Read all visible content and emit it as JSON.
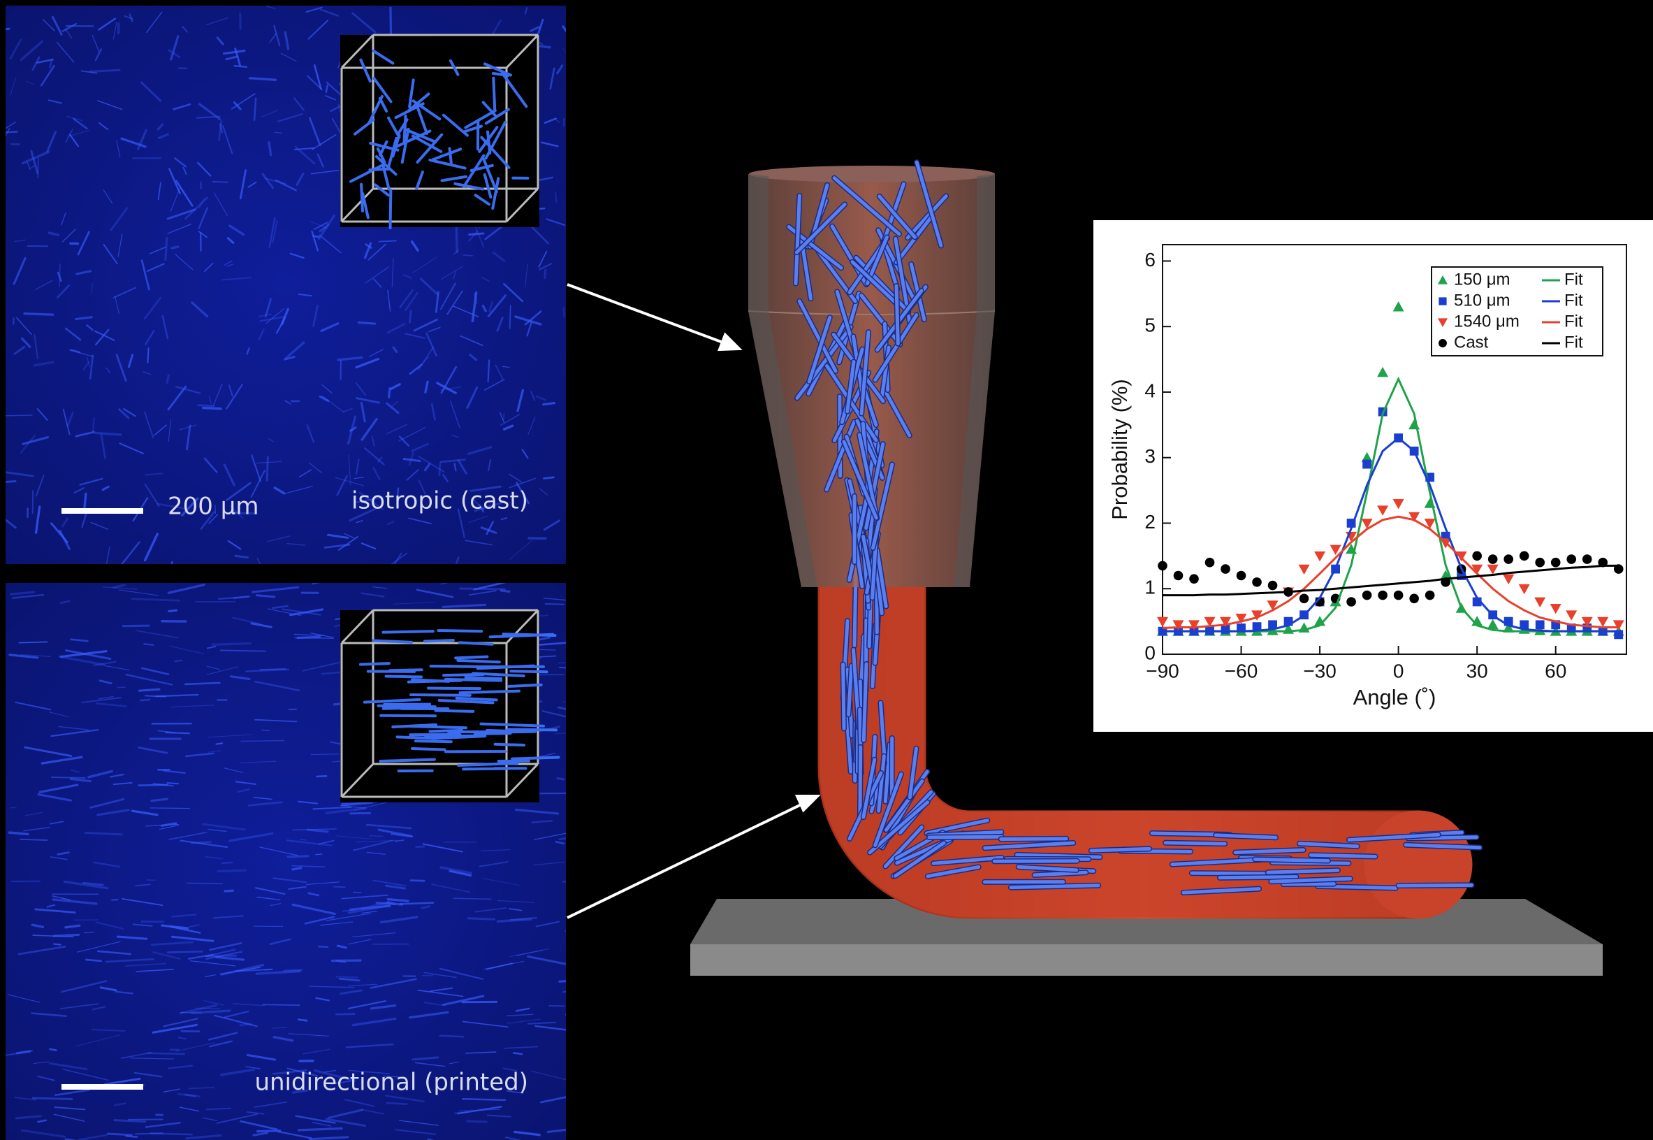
{
  "panels": [
    {
      "label": "isotropic (cast)",
      "scale_bar": "200 μm"
    },
    {
      "label": "unidirectional (printed)"
    }
  ],
  "chart_data": {
    "type": "scatter",
    "xlabel": "Angle (˚)",
    "ylabel": "Probability (%)",
    "x": [
      -90,
      -84,
      -78,
      -72,
      -66,
      -60,
      -54,
      -48,
      -42,
      -36,
      -30,
      -24,
      -18,
      -12,
      -6,
      0,
      6,
      12,
      18,
      24,
      30,
      36,
      42,
      48,
      54,
      60,
      66,
      72,
      78,
      84
    ],
    "xlim": [
      -90,
      87
    ],
    "ylim": [
      0,
      6.25
    ],
    "xticks": [
      {
        "value": -90,
        "label": "−90"
      },
      {
        "value": -60,
        "label": "−60"
      },
      {
        "value": -30,
        "label": "−30"
      },
      0,
      30,
      60
    ],
    "yticks": [
      0,
      1,
      2,
      3,
      4,
      5,
      6
    ],
    "grid": false,
    "legend": "upper right",
    "series": [
      {
        "name": "150 μm",
        "color": "#1fa34a",
        "marker": "triangle-up",
        "values": [
          0.35,
          0.35,
          0.35,
          0.35,
          0.35,
          0.35,
          0.35,
          0.36,
          0.38,
          0.4,
          0.5,
          0.8,
          1.6,
          3.0,
          4.3,
          5.3,
          3.5,
          2.3,
          1.2,
          0.7,
          0.5,
          0.45,
          0.4,
          0.38,
          0.36,
          0.35,
          0.35,
          0.35,
          0.35,
          0.35
        ]
      },
      {
        "name": "510 μm",
        "color": "#1a3fd0",
        "marker": "square",
        "values": [
          0.35,
          0.35,
          0.35,
          0.36,
          0.38,
          0.4,
          0.42,
          0.45,
          0.5,
          0.6,
          0.8,
          1.3,
          2.0,
          2.9,
          3.7,
          3.3,
          3.1,
          2.7,
          1.8,
          1.2,
          0.8,
          0.6,
          0.5,
          0.45,
          0.45,
          0.45,
          0.4,
          0.4,
          0.35,
          0.3
        ]
      },
      {
        "name": "1540 μm",
        "color": "#e8402a",
        "marker": "triangle-down",
        "values": [
          0.5,
          0.45,
          0.45,
          0.5,
          0.5,
          0.55,
          0.6,
          0.75,
          0.95,
          1.3,
          1.5,
          1.6,
          1.8,
          2.0,
          2.2,
          2.3,
          2.1,
          2.0,
          1.7,
          1.5,
          1.3,
          1.3,
          1.15,
          1.0,
          0.8,
          0.7,
          0.6,
          0.5,
          0.5,
          0.45
        ]
      },
      {
        "name": "Cast",
        "color": "#000000",
        "marker": "circle",
        "values": [
          1.35,
          1.2,
          1.15,
          1.4,
          1.3,
          1.2,
          1.1,
          1.05,
          0.95,
          0.85,
          0.8,
          0.85,
          0.8,
          0.9,
          0.9,
          0.9,
          0.85,
          0.9,
          1.1,
          1.3,
          1.5,
          1.45,
          1.45,
          1.5,
          1.4,
          1.4,
          1.45,
          1.45,
          1.4,
          1.3
        ]
      },
      {
        "name": "Fit",
        "color": "#1fa34a",
        "line": true,
        "values": [
          0.35,
          0.35,
          0.35,
          0.35,
          0.35,
          0.35,
          0.35,
          0.35,
          0.35,
          0.37,
          0.44,
          0.71,
          1.36,
          2.47,
          3.67,
          4.2,
          3.67,
          2.47,
          1.36,
          0.71,
          0.44,
          0.37,
          0.35,
          0.35,
          0.35,
          0.35,
          0.35,
          0.35,
          0.35,
          0.35
        ]
      },
      {
        "name": "Fit",
        "color": "#1a3fd0",
        "line": true,
        "values": [
          0.35,
          0.35,
          0.35,
          0.35,
          0.35,
          0.35,
          0.36,
          0.38,
          0.44,
          0.59,
          0.86,
          1.31,
          1.92,
          2.58,
          3.1,
          3.3,
          3.1,
          2.58,
          1.92,
          1.31,
          0.86,
          0.59,
          0.44,
          0.38,
          0.36,
          0.35,
          0.35,
          0.35,
          0.35,
          0.35
        ]
      },
      {
        "name": "Fit",
        "color": "#e8402a",
        "line": true,
        "values": [
          0.4,
          0.41,
          0.41,
          0.43,
          0.45,
          0.5,
          0.56,
          0.67,
          0.81,
          1.0,
          1.23,
          1.47,
          1.71,
          1.91,
          2.05,
          2.1,
          2.05,
          1.91,
          1.71,
          1.47,
          1.23,
          1.0,
          0.81,
          0.67,
          0.56,
          0.5,
          0.45,
          0.43,
          0.41,
          0.41
        ]
      },
      {
        "name": "Fit",
        "color": "#000000",
        "line": true,
        "values": [
          0.9,
          0.9,
          0.9,
          0.91,
          0.91,
          0.92,
          0.93,
          0.94,
          0.95,
          0.97,
          0.98,
          1.0,
          1.02,
          1.04,
          1.06,
          1.08,
          1.1,
          1.12,
          1.15,
          1.17,
          1.19,
          1.21,
          1.24,
          1.26,
          1.28,
          1.3,
          1.32,
          1.33,
          1.35,
          1.35
        ]
      }
    ]
  }
}
